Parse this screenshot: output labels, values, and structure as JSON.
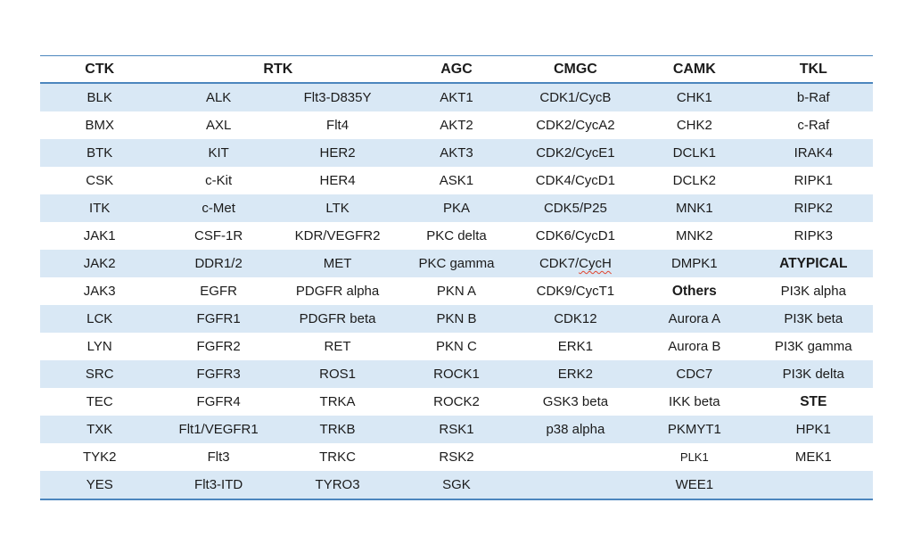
{
  "table": {
    "headers": [
      {
        "label": "CTK",
        "colspan": 1
      },
      {
        "label": "RTK",
        "colspan": 2
      },
      {
        "label": "AGC",
        "colspan": 1
      },
      {
        "label": "CMGC",
        "colspan": 1
      },
      {
        "label": "CAMK",
        "colspan": 1
      },
      {
        "label": "TKL",
        "colspan": 1
      }
    ],
    "rows": [
      [
        "BLK",
        "ALK",
        "Flt3-D835Y",
        "AKT1",
        "CDK1/CycB",
        "CHK1",
        "b-Raf"
      ],
      [
        "BMX",
        "AXL",
        "Flt4",
        "AKT2",
        "CDK2/CycA2",
        "CHK2",
        "c-Raf"
      ],
      [
        "BTK",
        "KIT",
        "HER2",
        "AKT3",
        "CDK2/CycE1",
        "DCLK1",
        "IRAK4"
      ],
      [
        "CSK",
        "c-Kit",
        "HER4",
        "ASK1",
        "CDK4/CycD1",
        "DCLK2",
        "RIPK1"
      ],
      [
        "ITK",
        "c-Met",
        "LTK",
        "PKA",
        "CDK5/P25",
        "MNK1",
        "RIPK2"
      ],
      [
        "JAK1",
        "CSF-1R",
        "KDR/VEGFR2",
        "PKC delta",
        "CDK6/CycD1",
        "MNK2",
        "RIPK3"
      ],
      [
        "JAK2",
        "DDR1/2",
        "MET",
        "PKC gamma",
        {
          "text": "CDK7/CycH",
          "squiggle_part": "CycH"
        },
        "DMPK1",
        {
          "text": "ATYPICAL",
          "bold": true
        }
      ],
      [
        "JAK3",
        "EGFR",
        "PDGFR alpha",
        "PKN A",
        "CDK9/CycT1",
        {
          "text": "Others",
          "bold": true
        },
        "PI3K alpha"
      ],
      [
        "LCK",
        "FGFR1",
        "PDGFR beta",
        "PKN B",
        "CDK12",
        "Aurora A",
        "PI3K beta"
      ],
      [
        "LYN",
        "FGFR2",
        "RET",
        "PKN C",
        "ERK1",
        "Aurora B",
        "PI3K gamma"
      ],
      [
        "SRC",
        "FGFR3",
        "ROS1",
        "ROCK1",
        "ERK2",
        "CDC7",
        "PI3K delta"
      ],
      [
        "TEC",
        "FGFR4",
        "TRKA",
        "ROCK2",
        "GSK3 beta",
        "IKK beta",
        {
          "text": "STE",
          "bold": true
        }
      ],
      [
        "TXK",
        "Flt1/VEGFR1",
        "TRKB",
        "RSK1",
        "p38 alpha",
        "PKMYT1",
        "HPK1"
      ],
      [
        "TYK2",
        "Flt3",
        "TRKC",
        "RSK2",
        "",
        {
          "text": "PLK1",
          "small": true
        },
        "MEK1"
      ],
      [
        "YES",
        "Flt3-ITD",
        "TYRO3",
        "SGK",
        "",
        "WEE1",
        ""
      ]
    ]
  },
  "colors": {
    "row_stripe": "#d9e8f5",
    "border_line": "#4c86be",
    "text": "#1b1b1b",
    "spellcheck_underline": "#e0452f",
    "page_background": "#ffffff"
  }
}
